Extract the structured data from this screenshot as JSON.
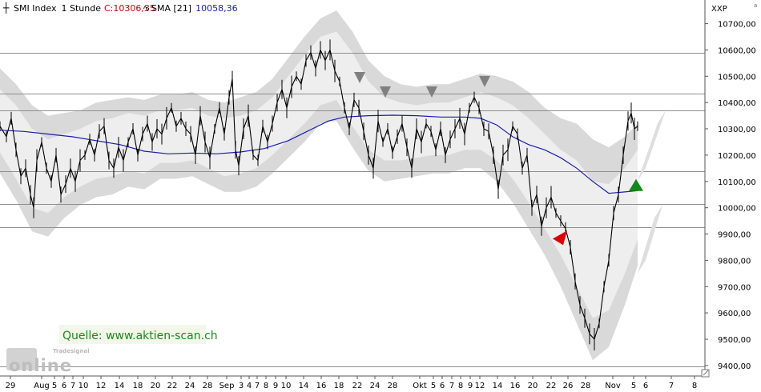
{
  "header": {
    "instrument": "SMI Index",
    "interval": "1 Stunde",
    "close_label": "C:",
    "close_value": "10306,35",
    "sma_label": "SMA [21]",
    "sma_value": "10058,36"
  },
  "watermark": "Quelle: www.aktien-scan.ch",
  "branding": {
    "logo_top": "Tradesignal",
    "logo_main": "online",
    "corner_mark": "a"
  },
  "y_axis_label": "XXP",
  "colors": {
    "price": "#000000",
    "sma": "#1c1cb0",
    "inner_band": "#eeeeee",
    "outer_band": "#d9d9d9",
    "hlines": "#8f8f8f",
    "triangle_down": "#808080",
    "triangle_up": "#128a12",
    "triangle_alert": "#e00000",
    "close_text": "#cc0000",
    "sma_text": "#1c1cb0",
    "watermark_text": "#1a8a1a",
    "watermark_bg": "#f3f7ea"
  },
  "chart_data": {
    "type": "line",
    "ylim": [
      9360,
      10790
    ],
    "y_ticks": [
      "10700,00",
      "10600,00",
      "10500,00",
      "10400,00",
      "10300,00",
      "10200,00",
      "10100,00",
      "10000,00",
      "9900,00",
      "9800,00",
      "9700,00",
      "9600,00",
      "9500,00",
      "9400,00"
    ],
    "y_tick_values": [
      10700,
      10600,
      10500,
      10400,
      10300,
      10200,
      10100,
      10000,
      9900,
      9800,
      9700,
      9600,
      9500,
      9400
    ],
    "x_range": [
      0,
      880
    ],
    "x_ticks": [
      {
        "x": 13,
        "label": "29"
      },
      {
        "x": 52,
        "label": "Aug"
      },
      {
        "x": 68,
        "label": "5"
      },
      {
        "x": 80,
        "label": "6"
      },
      {
        "x": 91,
        "label": "7"
      },
      {
        "x": 104,
        "label": "10"
      },
      {
        "x": 126,
        "label": "12"
      },
      {
        "x": 149,
        "label": "14"
      },
      {
        "x": 172,
        "label": "18"
      },
      {
        "x": 194,
        "label": "20"
      },
      {
        "x": 215,
        "label": "22"
      },
      {
        "x": 237,
        "label": "24"
      },
      {
        "x": 259,
        "label": "28"
      },
      {
        "x": 283,
        "label": "Sep"
      },
      {
        "x": 301,
        "label": "3"
      },
      {
        "x": 311,
        "label": "4"
      },
      {
        "x": 321,
        "label": "7"
      },
      {
        "x": 332,
        "label": "8"
      },
      {
        "x": 344,
        "label": "9"
      },
      {
        "x": 357,
        "label": "10"
      },
      {
        "x": 379,
        "label": "14"
      },
      {
        "x": 401,
        "label": "16"
      },
      {
        "x": 423,
        "label": "18"
      },
      {
        "x": 446,
        "label": "22"
      },
      {
        "x": 468,
        "label": "24"
      },
      {
        "x": 490,
        "label": "28"
      },
      {
        "x": 524,
        "label": "Okt"
      },
      {
        "x": 541,
        "label": "5"
      },
      {
        "x": 552,
        "label": "6"
      },
      {
        "x": 564,
        "label": "7"
      },
      {
        "x": 575,
        "label": "8"
      },
      {
        "x": 587,
        "label": "9"
      },
      {
        "x": 599,
        "label": "12"
      },
      {
        "x": 621,
        "label": "14"
      },
      {
        "x": 643,
        "label": "16"
      },
      {
        "x": 665,
        "label": "20"
      },
      {
        "x": 688,
        "label": "22"
      },
      {
        "x": 709,
        "label": "26"
      },
      {
        "x": 731,
        "label": "28"
      },
      {
        "x": 765,
        "label": "Nov"
      },
      {
        "x": 791,
        "label": "5"
      },
      {
        "x": 806,
        "label": "6"
      },
      {
        "x": 838,
        "label": "7"
      },
      {
        "x": 867,
        "label": "8"
      }
    ],
    "horizontal_levels": [
      10590,
      10435,
      10370,
      10140,
      10015,
      9925,
      9395
    ],
    "series": [
      {
        "name": "SMI Index",
        "x": [
          0,
          8,
          14,
          20,
          26,
          32,
          38,
          42,
          46,
          52,
          58,
          64,
          70,
          76,
          82,
          88,
          94,
          100,
          106,
          112,
          118,
          124,
          130,
          136,
          142,
          148,
          154,
          160,
          166,
          172,
          178,
          184,
          190,
          196,
          202,
          208,
          214,
          220,
          226,
          232,
          238,
          244,
          250,
          256,
          262,
          268,
          274,
          280,
          286,
          290,
          294,
          298,
          304,
          310,
          316,
          322,
          328,
          334,
          340,
          346,
          352,
          358,
          364,
          370,
          376,
          382,
          388,
          394,
          400,
          406,
          412,
          418,
          424,
          430,
          436,
          442,
          448,
          454,
          460,
          466,
          472,
          478,
          484,
          490,
          496,
          502,
          508,
          514,
          520,
          526,
          532,
          538,
          544,
          550,
          556,
          562,
          568,
          574,
          580,
          586,
          592,
          598,
          604,
          610,
          616,
          622,
          628,
          634,
          640,
          646,
          652,
          658,
          664,
          670,
          676,
          682,
          688,
          694,
          700,
          706,
          712,
          718,
          724,
          730,
          736,
          742,
          748,
          754,
          760,
          766,
          772,
          778,
          784,
          788,
          792,
          796
        ],
        "values": [
          10310,
          10270,
          10340,
          10220,
          10120,
          10150,
          10050,
          10000,
          10180,
          10250,
          10150,
          10100,
          10200,
          10050,
          10090,
          10150,
          10100,
          10180,
          10200,
          10260,
          10200,
          10290,
          10310,
          10180,
          10150,
          10230,
          10180,
          10250,
          10300,
          10200,
          10280,
          10320,
          10250,
          10300,
          10280,
          10340,
          10380,
          10310,
          10340,
          10300,
          10280,
          10200,
          10350,
          10250,
          10190,
          10300,
          10380,
          10280,
          10420,
          10490,
          10220,
          10160,
          10300,
          10350,
          10200,
          10180,
          10310,
          10250,
          10320,
          10400,
          10450,
          10380,
          10460,
          10500,
          10470,
          10560,
          10590,
          10530,
          10600,
          10560,
          10600,
          10520,
          10480,
          10380,
          10300,
          10410,
          10380,
          10290,
          10200,
          10150,
          10330,
          10250,
          10300,
          10210,
          10270,
          10320,
          10230,
          10150,
          10300,
          10250,
          10320,
          10290,
          10220,
          10300,
          10200,
          10260,
          10300,
          10340,
          10280,
          10380,
          10420,
          10380,
          10300,
          10290,
          10200,
          10070,
          10200,
          10220,
          10310,
          10280,
          10150,
          10200,
          10000,
          10050,
          9930,
          10000,
          10040,
          9980,
          9950,
          9920,
          9850,
          9720,
          9630,
          9580,
          9520,
          9500,
          9560,
          9700,
          9800,
          9980,
          10050,
          10200,
          10330,
          10360,
          10300,
          10310
        ]
      },
      {
        "name": "SMA [21]",
        "x": [
          0,
          30,
          60,
          90,
          120,
          150,
          180,
          210,
          240,
          270,
          300,
          330,
          360,
          390,
          410,
          430,
          460,
          490,
          520,
          550,
          580,
          600,
          620,
          640,
          660,
          680,
          700,
          720,
          740,
          760,
          780,
          796
        ],
        "values": [
          10295,
          10290,
          10280,
          10270,
          10255,
          10240,
          10215,
          10205,
          10208,
          10205,
          10212,
          10225,
          10255,
          10300,
          10330,
          10345,
          10350,
          10352,
          10350,
          10345,
          10345,
          10340,
          10315,
          10270,
          10240,
          10220,
          10190,
          10150,
          10100,
          10055,
          10060,
          10065
        ]
      },
      {
        "name": "Bands",
        "x": [
          0,
          20,
          40,
          60,
          80,
          100,
          120,
          140,
          160,
          180,
          200,
          220,
          240,
          260,
          280,
          300,
          320,
          340,
          360,
          380,
          400,
          420,
          440,
          460,
          480,
          500,
          520,
          540,
          560,
          580,
          600,
          620,
          640,
          660,
          680,
          700,
          720,
          740,
          760,
          780,
          796
        ],
        "mid": [
          10330,
          10250,
          10150,
          10120,
          10160,
          10190,
          10220,
          10230,
          10250,
          10240,
          10270,
          10270,
          10280,
          10250,
          10230,
          10240,
          10260,
          10310,
          10380,
          10450,
          10520,
          10540,
          10450,
          10350,
          10300,
          10290,
          10290,
          10300,
          10300,
          10320,
          10330,
          10300,
          10250,
          10180,
          10100,
          10020,
          9940,
          9840,
          9850,
          9950,
          10050
        ],
        "inner": [
          120,
          140,
          150,
          140,
          120,
          110,
          110,
          110,
          110,
          110,
          100,
          100,
          100,
          100,
          110,
          110,
          110,
          110,
          120,
          130,
          130,
          130,
          140,
          130,
          120,
          110,
          100,
          100,
          100,
          100,
          110,
          120,
          140,
          160,
          180,
          200,
          240,
          260,
          240,
          200,
          170
        ],
        "outer": [
          200,
          220,
          240,
          230,
          200,
          180,
          180,
          180,
          170,
          170,
          160,
          160,
          160,
          160,
          170,
          180,
          180,
          180,
          190,
          200,
          200,
          210,
          220,
          210,
          200,
          180,
          170,
          170,
          170,
          170,
          180,
          200,
          230,
          260,
          280,
          320,
          380,
          420,
          380,
          320,
          270
        ]
      }
    ],
    "markers": [
      {
        "type": "down",
        "x": 449,
        "value": 10495
      },
      {
        "type": "down",
        "x": 481,
        "value": 10440
      },
      {
        "type": "down",
        "x": 539,
        "value": 10440
      },
      {
        "type": "down",
        "x": 605,
        "value": 10480
      },
      {
        "type": "alert",
        "x": 699,
        "value": 9885
      },
      {
        "type": "up",
        "x": 794,
        "value": 10085
      }
    ],
    "projections": [
      {
        "x0": 806,
        "v0": 10150,
        "x1": 831,
        "v1": 10370,
        "w": 10
      },
      {
        "x0": 806,
        "v0": 9800,
        "x1": 827,
        "v1": 10010,
        "w": 10
      }
    ]
  }
}
